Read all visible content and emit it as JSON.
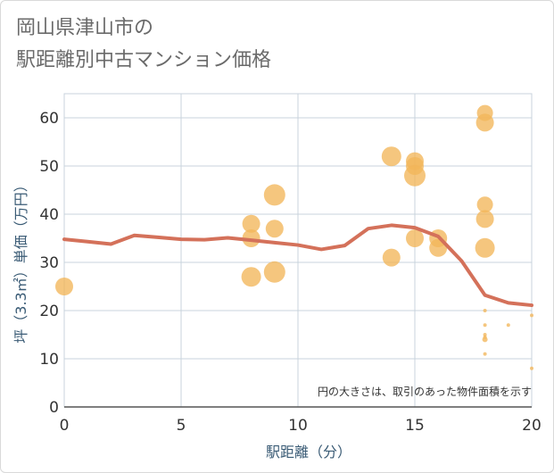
{
  "title": {
    "line1": "岡山県津山市の",
    "line2": "駅距離別中古マンション価格"
  },
  "chart_data": {
    "type": "scatter",
    "title": "岡山県津山市の駅距離別中古マンション価格",
    "xlabel": "駅距離（分）",
    "ylabel": "坪（3.3㎡）単価（万円）",
    "xlim": [
      0,
      20
    ],
    "ylim": [
      0,
      65
    ],
    "x_ticks": [
      "0",
      "5",
      "10",
      "15",
      "20"
    ],
    "y_ticks": [
      "0",
      "10",
      "20",
      "30",
      "40",
      "50",
      "60"
    ],
    "grid": true,
    "annotation": "円の大きさは、取引のあった物件面積を示す",
    "colors": {
      "bubble": "#f2b65a",
      "line": "#d4715a",
      "grid": "#c8d3dc"
    },
    "points": [
      {
        "x": 0,
        "y": 25,
        "size": 10
      },
      {
        "x": 8,
        "y": 38,
        "size": 10
      },
      {
        "x": 8,
        "y": 35,
        "size": 10
      },
      {
        "x": 8,
        "y": 27,
        "size": 11
      },
      {
        "x": 9,
        "y": 44,
        "size": 12
      },
      {
        "x": 9,
        "y": 37,
        "size": 10
      },
      {
        "x": 9,
        "y": 28,
        "size": 12
      },
      {
        "x": 14,
        "y": 52,
        "size": 11
      },
      {
        "x": 14,
        "y": 31,
        "size": 10
      },
      {
        "x": 15,
        "y": 51,
        "size": 10
      },
      {
        "x": 15,
        "y": 50,
        "size": 10
      },
      {
        "x": 15,
        "y": 48,
        "size": 12
      },
      {
        "x": 15,
        "y": 35,
        "size": 10
      },
      {
        "x": 16,
        "y": 35,
        "size": 10
      },
      {
        "x": 16,
        "y": 33,
        "size": 10
      },
      {
        "x": 18,
        "y": 61,
        "size": 9
      },
      {
        "x": 18,
        "y": 59,
        "size": 10
      },
      {
        "x": 18,
        "y": 42,
        "size": 9
      },
      {
        "x": 18,
        "y": 39,
        "size": 10
      },
      {
        "x": 18,
        "y": 33,
        "size": 11
      },
      {
        "x": 18,
        "y": 20,
        "size": 2
      },
      {
        "x": 18,
        "y": 17,
        "size": 2
      },
      {
        "x": 18,
        "y": 15,
        "size": 2
      },
      {
        "x": 18,
        "y": 14.5,
        "size": 2
      },
      {
        "x": 18,
        "y": 14,
        "size": 3
      },
      {
        "x": 18,
        "y": 11,
        "size": 2
      },
      {
        "x": 19,
        "y": 17,
        "size": 2
      },
      {
        "x": 20,
        "y": 19,
        "size": 2
      },
      {
        "x": 20,
        "y": 8,
        "size": 2
      }
    ],
    "trend_line": {
      "x": [
        0,
        1,
        2,
        3,
        4,
        5,
        6,
        7,
        8,
        9,
        10,
        11,
        12,
        13,
        14,
        15,
        16,
        17,
        18,
        19,
        20
      ],
      "y": [
        34.8,
        34.3,
        33.8,
        35.6,
        35.2,
        34.8,
        34.7,
        35.1,
        34.6,
        34.1,
        33.6,
        32.7,
        33.5,
        37.0,
        37.7,
        37.2,
        35.4,
        30.3,
        23.2,
        21.6,
        21.1
      ]
    }
  }
}
